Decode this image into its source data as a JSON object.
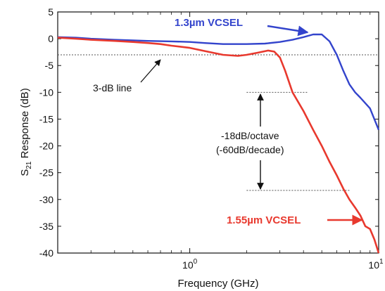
{
  "chart_data": {
    "type": "line",
    "title": "",
    "xlabel": "Frequency (GHz)",
    "ylabel": "S21 Response (dB)",
    "ylabel_main": "S",
    "ylabel_sub": "21",
    "ylabel_rest": " Response (dB)",
    "x_scale": "log",
    "xlim": [
      0.2,
      10
    ],
    "ylim": [
      -40,
      5
    ],
    "x_ticks": [
      1,
      10
    ],
    "x_tick_labels": [
      {
        "base": "10",
        "exp": "0"
      },
      {
        "base": "10",
        "exp": "1"
      }
    ],
    "y_ticks": [
      5,
      0,
      -5,
      -10,
      -15,
      -20,
      -25,
      -30,
      -35,
      -40
    ],
    "y_tick_labels": [
      "5",
      "0",
      "-5",
      "-10",
      "-15",
      "-20",
      "-25",
      "-30",
      "-35",
      "-40"
    ],
    "grid": false,
    "series": [
      {
        "name": "1.3µm VCSEL",
        "color": "#3344cc",
        "x": [
          0.2,
          0.25,
          0.3,
          0.4,
          0.5,
          0.6,
          0.8,
          1.0,
          1.2,
          1.5,
          2.0,
          2.5,
          3.0,
          3.5,
          4.0,
          4.5,
          5.0,
          5.5,
          6.0,
          6.5,
          7.0,
          7.5,
          8.0,
          9.0,
          10.0
        ],
        "y": [
          0.3,
          0.2,
          0.0,
          -0.2,
          -0.3,
          -0.4,
          -0.5,
          -0.6,
          -0.8,
          -1.0,
          -1.0,
          -0.9,
          -0.6,
          -0.2,
          0.3,
          0.8,
          0.8,
          -0.5,
          -3.0,
          -6.0,
          -8.5,
          -10.0,
          -11.0,
          -13.0,
          -17.0
        ]
      },
      {
        "name": "1.55µm VCSEL",
        "color": "#e8392e",
        "x": [
          0.2,
          0.25,
          0.3,
          0.4,
          0.5,
          0.6,
          0.7,
          0.8,
          1.0,
          1.2,
          1.5,
          1.8,
          2.0,
          2.3,
          2.6,
          2.8,
          3.0,
          3.2,
          3.5,
          4.0,
          4.5,
          5.0,
          5.5,
          6.0,
          6.5,
          7.0,
          7.5,
          8.0,
          8.5,
          9.0,
          9.5,
          10.0
        ],
        "y": [
          0.2,
          0.0,
          -0.2,
          -0.4,
          -0.6,
          -0.8,
          -1.0,
          -1.3,
          -1.7,
          -2.3,
          -3.0,
          -3.2,
          -3.0,
          -2.6,
          -2.2,
          -2.4,
          -3.5,
          -6.0,
          -10.0,
          -13.5,
          -17.0,
          -20.0,
          -23.0,
          -25.5,
          -28.0,
          -30.0,
          -31.5,
          -33.0,
          -35.0,
          -35.5,
          -37.5,
          -40.0
        ]
      }
    ],
    "reference_lines": [
      {
        "label": "3-dB line",
        "y": -3
      },
      {
        "y": -10,
        "x_start": 2.0,
        "x_end": 4.2
      },
      {
        "y": -28.3,
        "x_start": 2.0,
        "x_end": 7.0
      }
    ],
    "annotations": {
      "line_label": "3-dB line",
      "slope_line1": "-18dB/octave",
      "slope_line2": "(-60dB/decade)"
    }
  }
}
